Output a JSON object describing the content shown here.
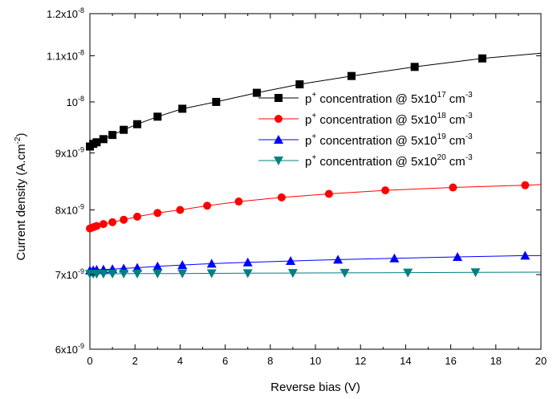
{
  "chart_data": {
    "type": "line",
    "title": "",
    "xlabel": "Reverse bias (V)",
    "ylabel": "Current density (A.cm⁻²)",
    "xlim": [
      0,
      20
    ],
    "ylim": [
      6e-09,
      1.2e-08
    ],
    "yscale": "log",
    "grid": false,
    "legend_position": "top-right",
    "x_ticks": [
      "0",
      "2",
      "4",
      "6",
      "8",
      "10",
      "12",
      "14",
      "16",
      "18",
      "20"
    ],
    "y_ticks": [
      {
        "value": 6e-09,
        "mantissa": "6x10",
        "exponent": "-9"
      },
      {
        "value": 7e-09,
        "mantissa": "7x10",
        "exponent": "-9"
      },
      {
        "value": 8e-09,
        "mantissa": "8x10",
        "exponent": "-9"
      },
      {
        "value": 9e-09,
        "mantissa": "9x10",
        "exponent": "-9"
      },
      {
        "value": 1e-08,
        "mantissa": "10",
        "exponent": "-8"
      },
      {
        "value": 1.1e-08,
        "mantissa": "1.1x10",
        "exponent": "-8"
      },
      {
        "value": 1.2e-08,
        "mantissa": "1.2x10",
        "exponent": "-8"
      }
    ],
    "series": [
      {
        "legend": {
          "pre": "p",
          "sup1": "+",
          "mid": " concentration @ 5x10",
          "sup2": "17",
          "unit": " cm",
          "sup3": "-3"
        },
        "color": "#000000",
        "marker": "square",
        "x": [
          0,
          0.15,
          0.3,
          0.6,
          1.0,
          1.5,
          2.1,
          3.0,
          4.1,
          5.6,
          7.4,
          9.3,
          11.6,
          14.4,
          17.4,
          20
        ],
        "y": [
          9.12e-09,
          9.17e-09,
          9.2e-09,
          9.26e-09,
          9.34e-09,
          9.44e-09,
          9.55e-09,
          9.7e-09,
          9.86e-09,
          1e-08,
          1.019e-08,
          1.037e-08,
          1.055e-08,
          1.075e-08,
          1.094e-08,
          1.106e-08
        ]
      },
      {
        "legend": {
          "pre": "p",
          "sup1": "+",
          "mid": " concentration @ 5x10",
          "sup2": "18",
          "unit": " cm",
          "sup3": "-3"
        },
        "color": "#ff0000",
        "marker": "circle",
        "x": [
          0,
          0.15,
          0.3,
          0.6,
          1.0,
          1.5,
          2.1,
          3.0,
          4.0,
          5.2,
          6.6,
          8.5,
          10.6,
          13.1,
          16.1,
          19.3,
          20
        ],
        "y": [
          7.7e-09,
          7.72e-09,
          7.74e-09,
          7.77e-09,
          7.8e-09,
          7.84e-09,
          7.89e-09,
          7.95e-09,
          8e-09,
          8.07e-09,
          8.14e-09,
          8.21e-09,
          8.27e-09,
          8.33e-09,
          8.38e-09,
          8.42e-09,
          8.43e-09
        ]
      },
      {
        "legend": {
          "pre": "p",
          "sup1": "+",
          "mid": " concentration @ 5x10",
          "sup2": "19",
          "unit": " cm",
          "sup3": "-3"
        },
        "color": "#0000ff",
        "marker": "triangle-up",
        "x": [
          0,
          0.15,
          0.3,
          0.6,
          1.0,
          1.5,
          2.1,
          3.0,
          4.1,
          5.4,
          7.0,
          8.9,
          11.0,
          13.5,
          16.3,
          19.3,
          20
        ],
        "y": [
          7.06e-09,
          7.065e-09,
          7.07e-09,
          7.075e-09,
          7.08e-09,
          7.09e-09,
          7.1e-09,
          7.12e-09,
          7.14e-09,
          7.16e-09,
          7.18e-09,
          7.2e-09,
          7.22e-09,
          7.24e-09,
          7.26e-09,
          7.28e-09,
          7.28e-09
        ]
      },
      {
        "legend": {
          "pre": "p",
          "sup1": "+",
          "mid": " concentration @ 5x10",
          "sup2": "20",
          "unit": " cm",
          "sup3": "-3"
        },
        "color": "#008080",
        "marker": "triangle-down",
        "x": [
          0,
          0.15,
          0.3,
          0.6,
          1.0,
          1.5,
          2.1,
          3.0,
          4.1,
          5.4,
          7.0,
          9.0,
          11.3,
          14.1,
          17.1,
          20
        ],
        "y": [
          7.01e-09,
          7.01e-09,
          7.01e-09,
          7.012e-09,
          7.012e-09,
          7.013e-09,
          7.014e-09,
          7.015e-09,
          7.016e-09,
          7.018e-09,
          7.02e-09,
          7.022e-09,
          7.025e-09,
          7.028e-09,
          7.032e-09,
          7.035e-09
        ]
      }
    ]
  }
}
